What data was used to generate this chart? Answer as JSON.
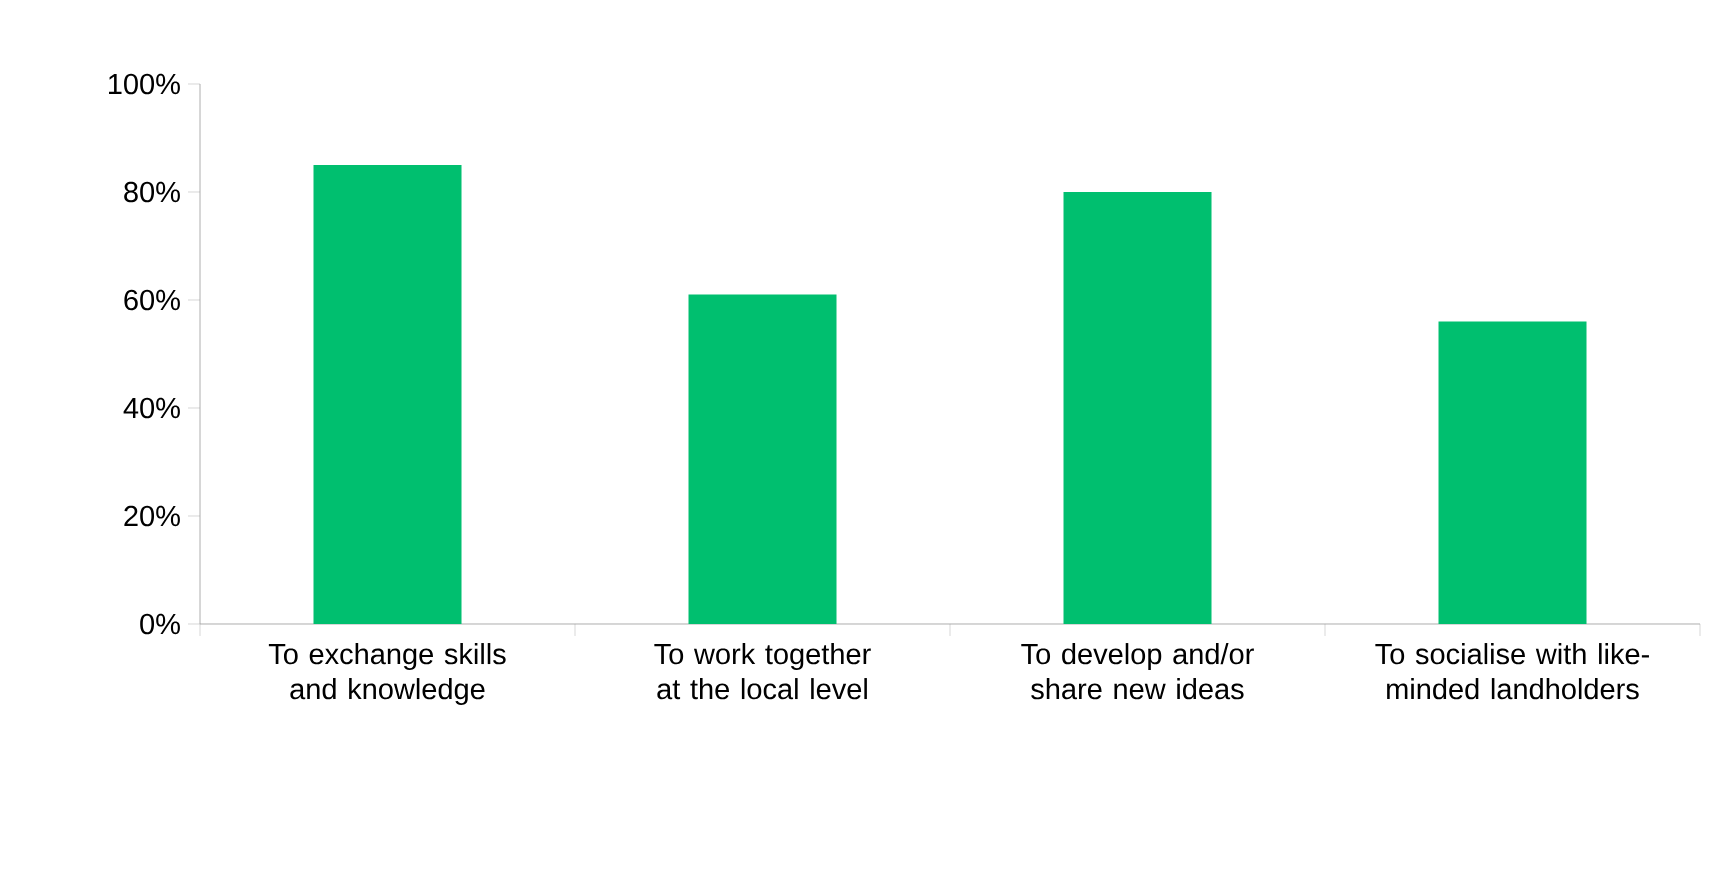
{
  "chart_data": {
    "type": "bar",
    "categories": [
      "To exchange skills and knowledge",
      "To work together at the local level",
      "To develop and/or share new ideas",
      "To socialise with like-minded landholders"
    ],
    "values": [
      85,
      61,
      80,
      56
    ],
    "color": "#00bf6f",
    "ylim": [
      0,
      100
    ],
    "yticks": [
      {
        "value": 0,
        "label": "0%"
      },
      {
        "value": 20,
        "label": "20%"
      },
      {
        "value": 40,
        "label": "40%"
      },
      {
        "value": 60,
        "label": "60%"
      },
      {
        "value": 80,
        "label": "80%"
      },
      {
        "value": 100,
        "label": "100%"
      }
    ]
  }
}
